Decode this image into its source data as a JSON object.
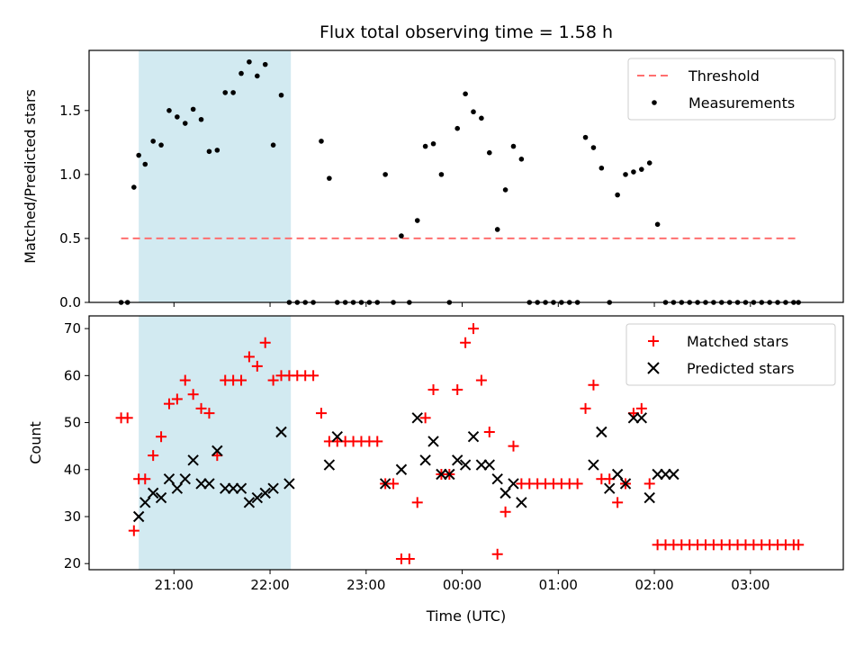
{
  "chart_data": [
    {
      "type": "scatter",
      "title": "Flux total observing time = 1.58 h",
      "ylabel": "Matched/Predicted stars",
      "xlabel": "",
      "x_axis": "time_utc",
      "xlim": [
        "20:07",
        "03:58"
      ],
      "ylim": [
        0,
        1.97
      ],
      "yticks": [
        0.0,
        0.5,
        1.0,
        1.5
      ],
      "ytick_labels": [
        "0.0",
        "0.5",
        "1.0",
        "1.5"
      ],
      "xticks": [
        "21:00",
        "22:00",
        "23:00",
        "00:00",
        "01:00",
        "02:00",
        "03:00"
      ],
      "xtick_labels": [
        "",
        "",
        "",
        "",
        "",
        "",
        ""
      ],
      "shaded_span": [
        "20:38",
        "22:13"
      ],
      "shade_color": "#add8e6",
      "threshold": {
        "name": "Threshold",
        "y": 0.5,
        "x_start": "20:27",
        "x_end": "03:28",
        "color": "#ff6f6f",
        "style": "dashed"
      },
      "series": [
        {
          "name": "Measurements",
          "color": "#000000",
          "marker": "dot",
          "x": [
            "20:27",
            "20:31",
            "20:35",
            "20:38",
            "20:42",
            "20:47",
            "20:52",
            "20:57",
            "21:02",
            "21:07",
            "21:12",
            "21:17",
            "21:22",
            "21:27",
            "21:32",
            "21:37",
            "21:42",
            "21:47",
            "21:52",
            "21:57",
            "22:02",
            "22:07",
            "22:12",
            "22:17",
            "22:22",
            "22:27",
            "22:32",
            "22:37",
            "22:42",
            "22:47",
            "22:52",
            "22:57",
            "23:02",
            "23:07",
            "23:12",
            "23:17",
            "23:22",
            "23:27",
            "23:32",
            "23:37",
            "23:42",
            "23:47",
            "23:52",
            "23:57",
            "00:02",
            "00:07",
            "00:12",
            "00:17",
            "00:22",
            "00:27",
            "00:32",
            "00:37",
            "00:42",
            "00:47",
            "00:52",
            "00:57",
            "01:02",
            "01:07",
            "01:12",
            "01:17",
            "01:22",
            "01:27",
            "01:32",
            "01:37",
            "01:42",
            "01:47",
            "01:52",
            "01:57",
            "02:02",
            "02:07",
            "02:12",
            "02:17",
            "02:22",
            "02:27",
            "02:32",
            "02:37",
            "02:42",
            "02:47",
            "02:52",
            "02:57",
            "03:02",
            "03:07",
            "03:12",
            "03:17",
            "03:22",
            "03:27",
            "03:30"
          ],
          "y": [
            0,
            0,
            0.9,
            1.15,
            1.08,
            1.26,
            1.23,
            1.5,
            1.45,
            1.4,
            1.51,
            1.43,
            1.18,
            1.19,
            1.64,
            1.64,
            1.79,
            1.88,
            1.77,
            1.86,
            1.23,
            1.62,
            0,
            0,
            0,
            0,
            1.26,
            0.97,
            0,
            0,
            0,
            0,
            0,
            0,
            1.0,
            0,
            0.52,
            0,
            0.64,
            1.22,
            1.24,
            1.0,
            0,
            1.36,
            1.63,
            1.49,
            1.44,
            1.17,
            0.57,
            0.88,
            1.22,
            1.12,
            0,
            0,
            0,
            0,
            0,
            0,
            0,
            1.29,
            1.21,
            1.05,
            0,
            0.84,
            1.0,
            1.02,
            1.04,
            1.09,
            0.61,
            0,
            0,
            0,
            0,
            0,
            0,
            0,
            0,
            0,
            0,
            0,
            0,
            0,
            0,
            0,
            0,
            0,
            0
          ]
        }
      ],
      "legend": {
        "placement": "top-right",
        "entries": [
          "Threshold",
          "Measurements"
        ]
      }
    },
    {
      "type": "scatter",
      "title": "",
      "ylabel": "Count",
      "xlabel": "Time (UTC)",
      "x_axis": "time_utc",
      "xlim": [
        "20:07",
        "03:58"
      ],
      "ylim": [
        18.7,
        72.7
      ],
      "yticks": [
        20,
        30,
        40,
        50,
        60,
        70
      ],
      "ytick_labels": [
        "20",
        "30",
        "40",
        "50",
        "60",
        "70"
      ],
      "xticks": [
        "21:00",
        "22:00",
        "23:00",
        "00:00",
        "01:00",
        "02:00",
        "03:00"
      ],
      "xtick_labels": [
        "21:00",
        "22:00",
        "23:00",
        "00:00",
        "01:00",
        "02:00",
        "03:00"
      ],
      "shaded_span": [
        "20:38",
        "22:13"
      ],
      "shade_color": "#add8e6",
      "series": [
        {
          "name": "Matched stars",
          "color": "#ff0000",
          "marker": "plus",
          "x": [
            "20:27",
            "20:31",
            "20:35",
            "20:38",
            "20:42",
            "20:47",
            "20:52",
            "20:57",
            "21:02",
            "21:07",
            "21:12",
            "21:17",
            "21:22",
            "21:27",
            "21:32",
            "21:37",
            "21:42",
            "21:47",
            "21:52",
            "21:57",
            "22:02",
            "22:07",
            "22:12",
            "22:17",
            "22:22",
            "22:27",
            "22:32",
            "22:37",
            "22:42",
            "22:47",
            "22:52",
            "22:57",
            "23:02",
            "23:07",
            "23:12",
            "23:17",
            "23:22",
            "23:27",
            "23:32",
            "23:37",
            "23:42",
            "23:47",
            "23:52",
            "23:57",
            "00:02",
            "00:07",
            "00:12",
            "00:17",
            "00:22",
            "00:27",
            "00:32",
            "00:37",
            "00:42",
            "00:47",
            "00:52",
            "00:57",
            "01:02",
            "01:07",
            "01:12",
            "01:17",
            "01:22",
            "01:27",
            "01:32",
            "01:37",
            "01:42",
            "01:47",
            "01:52",
            "01:57",
            "02:02",
            "02:07",
            "02:12",
            "02:17",
            "02:22",
            "02:27",
            "02:32",
            "02:37",
            "02:42",
            "02:47",
            "02:52",
            "02:57",
            "03:02",
            "03:07",
            "03:12",
            "03:17",
            "03:22",
            "03:27",
            "03:30"
          ],
          "y": [
            51,
            51,
            27,
            38,
            38,
            43,
            47,
            54,
            55,
            59,
            56,
            53,
            52,
            43,
            59,
            59,
            59,
            64,
            62,
            67,
            59,
            60,
            60,
            60,
            60,
            60,
            52,
            46,
            46,
            46,
            46,
            46,
            46,
            46,
            37,
            37,
            21,
            21,
            33,
            51,
            57,
            39,
            39,
            57,
            67,
            70,
            59,
            48,
            22,
            31,
            45,
            37,
            37,
            37,
            37,
            37,
            37,
            37,
            37,
            53,
            58,
            38,
            38,
            33,
            37,
            52,
            53,
            37,
            24,
            24,
            24,
            24,
            24,
            24,
            24,
            24,
            24,
            24,
            24,
            24,
            24,
            24,
            24,
            24,
            24,
            24,
            24
          ]
        },
        {
          "name": "Predicted stars",
          "color": "#000000",
          "marker": "x",
          "x": [
            "20:38",
            "20:42",
            "20:47",
            "20:52",
            "20:57",
            "21:02",
            "21:07",
            "21:12",
            "21:17",
            "21:22",
            "21:27",
            "21:32",
            "21:37",
            "21:42",
            "21:47",
            "21:52",
            "21:57",
            "22:02",
            "22:07",
            "22:12",
            "22:37",
            "22:42",
            "23:12",
            "23:22",
            "23:32",
            "23:37",
            "23:42",
            "23:47",
            "23:52",
            "23:57",
            "00:02",
            "00:07",
            "00:12",
            "00:17",
            "00:22",
            "00:27",
            "00:32",
            "00:37",
            "01:22",
            "01:27",
            "01:32",
            "01:37",
            "01:42",
            "01:47",
            "01:52",
            "01:57",
            "02:02",
            "02:07",
            "02:12"
          ],
          "y": [
            30,
            33,
            35,
            34,
            38,
            36,
            38,
            42,
            37,
            37,
            44,
            36,
            36,
            36,
            33,
            34,
            35,
            36,
            48,
            37,
            41,
            47,
            37,
            40,
            51,
            42,
            46,
            39,
            39,
            42,
            41,
            47,
            41,
            41,
            38,
            35,
            37,
            33,
            41,
            48,
            36,
            39,
            37,
            51,
            51,
            34,
            39,
            39,
            39
          ]
        }
      ],
      "legend": {
        "placement": "top-right",
        "entries": [
          "Matched stars",
          "Predicted stars"
        ]
      }
    }
  ]
}
